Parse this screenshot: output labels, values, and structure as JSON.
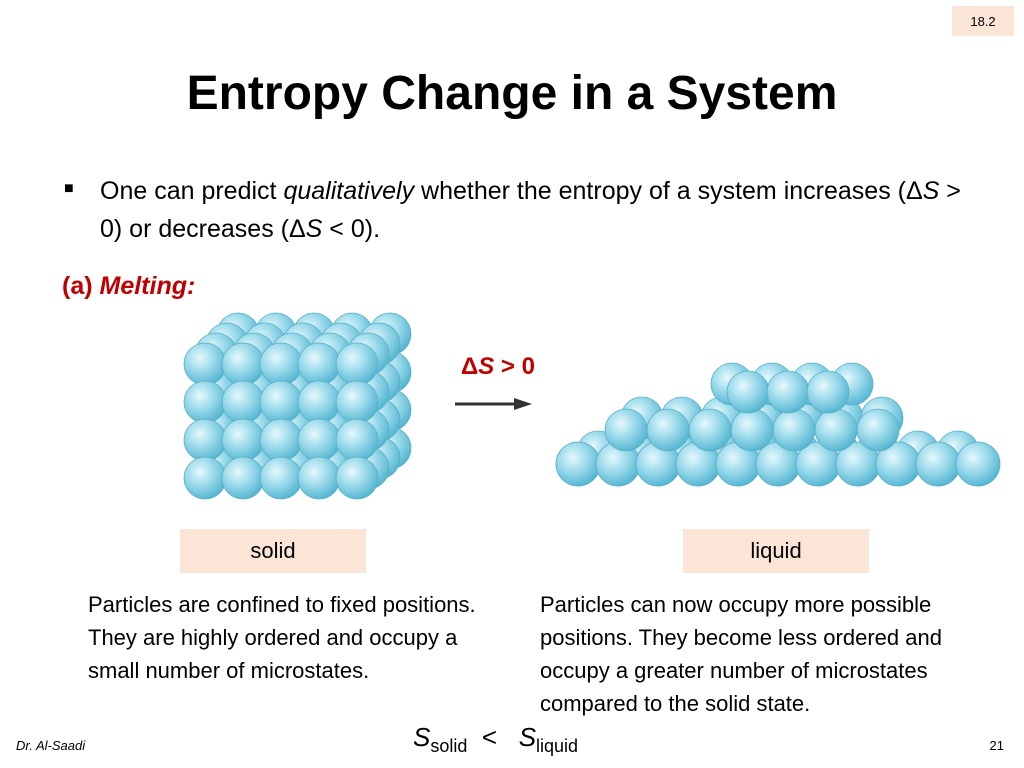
{
  "slide_tag": "18.2",
  "title": "Entropy Change in a System",
  "bullet": [
    "One can predict ",
    "qualitatively",
    " whether the entropy of a system increases (Δ",
    "S",
    " > 0) or decreases (Δ",
    "S",
    " < 0)."
  ],
  "subheading": [
    "(a) ",
    "Melting:"
  ],
  "delta_label": [
    "Δ",
    "S",
    " > 0"
  ],
  "solid_label": "solid",
  "liquid_label": "liquid",
  "solid_description": "Particles are confined to fixed positions. They are highly ordered and occupy a small number of microstates.",
  "liquid_description": "Particles can now occupy more possible positions. They become less ordered and occupy a greater number of microstates compared to the solid state.",
  "relation": [
    "S",
    "solid",
    "<",
    "S",
    "liquid"
  ],
  "author": "Dr. Al-Saadi",
  "page_number": "21"
}
